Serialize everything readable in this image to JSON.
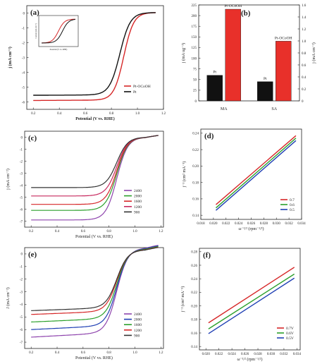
{
  "chart_data": [
    {
      "id": "a",
      "panel_label": "(a)",
      "type": "line",
      "xlabel": "Potential (V vs. RHE)",
      "ylabel": "j (mA cm⁻²)",
      "xlim": [
        0.15,
        1.2
      ],
      "ylim": [
        -6.5,
        0.5
      ],
      "xticks": [
        0.2,
        0.4,
        0.6,
        0.8,
        1.0,
        1.2
      ],
      "xtick_labels": [
        "0.2",
        "0.4",
        "0.6",
        "0.8",
        "1.0",
        "1.2"
      ],
      "yticks": [
        -6,
        -5,
        -4,
        -3,
        -2,
        -1,
        0
      ],
      "ytick_labels": [
        "-6",
        "-5",
        "-4",
        "-3",
        "-2",
        "-1",
        "0"
      ],
      "series": [
        {
          "name": "Pt-OCoOH",
          "color": "#d62728",
          "limit": -5.9,
          "e_half": 0.895,
          "width": 0.038
        },
        {
          "name": "Pt",
          "color": "#111111",
          "limit": -5.55,
          "e_half": 0.865,
          "width": 0.04
        }
      ],
      "inset": {
        "xlabel": "Potential (V vs. RHE)",
        "ylabel": "Current (mA cm⁻²)"
      }
    },
    {
      "id": "b",
      "panel_label": "(b)",
      "type": "bar",
      "ylabel": "j (mA ug⁻¹)",
      "y2label": "j (mA cm⁻²)",
      "ylim": [
        0,
        225
      ],
      "y2lim": [
        0,
        1.6
      ],
      "yticks": [
        0,
        25,
        50,
        75,
        100,
        125,
        150,
        175,
        200,
        225
      ],
      "ytick_labels": [
        "0",
        "25",
        "50",
        "75",
        "100",
        "125",
        "150",
        "175",
        "200",
        "225"
      ],
      "y2ticks": [
        0,
        0.2,
        0.4,
        0.6,
        0.8,
        1.0,
        1.2,
        1.4,
        1.6
      ],
      "y2tick_labels": [
        "0",
        "0.2",
        "0.4",
        "0.6",
        "0.8",
        "1.0",
        "1.2",
        "1.4",
        "1.6"
      ],
      "categories": [
        "MA",
        "SA"
      ],
      "series": [
        {
          "name": "Pt",
          "color": "#111111",
          "values": [
            60,
            45
          ]
        },
        {
          "name": "Pt-OCoOH",
          "color": "#e8302a",
          "values": [
            215,
            140
          ]
        }
      ]
    },
    {
      "id": "c",
      "panel_label": "(c)",
      "type": "line",
      "xlabel": "Potential (V vs. RHE)",
      "ylabel": "j (mA cm⁻²)",
      "xlim": [
        0.15,
        1.22
      ],
      "ylim": [
        -7.5,
        0.5
      ],
      "xticks": [
        0.2,
        0.4,
        0.6,
        0.8,
        1.0,
        1.2
      ],
      "xtick_labels": [
        "0.2",
        "0.4",
        "0.6",
        "0.8",
        "1.0",
        "1.2"
      ],
      "yticks": [
        -7,
        -6,
        -5,
        -4,
        -3,
        -2,
        -1,
        0
      ],
      "ytick_labels": [
        "-7",
        "-6",
        "-5",
        "-4",
        "-3",
        "-2",
        "-1",
        "0"
      ],
      "series": [
        {
          "name": "2400",
          "color": "#8e44ad",
          "limit": -6.9
        },
        {
          "name": "2000",
          "color": "#2ca02c",
          "limit": -6.1
        },
        {
          "name": "1600",
          "color": "#d62728",
          "limit": -5.6
        },
        {
          "name": "1200",
          "color": "#c7285e",
          "limit": -4.9
        },
        {
          "name": "900",
          "color": "#333333",
          "limit": -4.2
        }
      ]
    },
    {
      "id": "d",
      "panel_label": "(d)",
      "type": "line",
      "xlabel": "ω⁻¹/² (rpm⁻¹/²)",
      "ylabel": "j⁻¹ (cm² mA⁻¹)",
      "xlim": [
        0.018,
        0.034
      ],
      "ylim": [
        0.135,
        0.245
      ],
      "xticks": [
        0.018,
        0.02,
        0.022,
        0.024,
        0.026,
        0.028,
        0.03,
        0.032,
        0.034
      ],
      "xtick_labels": [
        "0.018",
        "0.020",
        "0.022",
        "0.024",
        "0.026",
        "0.028",
        "0.030",
        "0.032",
        "0.034"
      ],
      "yticks": [
        0.14,
        0.16,
        0.18,
        0.2,
        0.22,
        0.24
      ],
      "ytick_labels": [
        "0.14",
        "0.16",
        "0.18",
        "0.20",
        "0.22",
        "0.24"
      ],
      "series": [
        {
          "name": "0.7",
          "color": "#d62728",
          "x": [
            0.0204,
            0.0331
          ],
          "y": [
            0.153,
            0.237
          ]
        },
        {
          "name": "0.6",
          "color": "#2ca02c",
          "x": [
            0.0204,
            0.0331
          ],
          "y": [
            0.149,
            0.234
          ]
        },
        {
          "name": "0.5",
          "color": "#1f3fb4",
          "x": [
            0.0204,
            0.0331
          ],
          "y": [
            0.146,
            0.231
          ]
        }
      ]
    },
    {
      "id": "e",
      "panel_label": "(e)",
      "type": "line",
      "xlabel": "Potential (V vs. RHE)",
      "ylabel": "J (mA cm⁻²)",
      "xlim": [
        0.15,
        1.22
      ],
      "ylim": [
        -7.5,
        0.5
      ],
      "xticks": [
        0.2,
        0.4,
        0.6,
        0.8,
        1.0,
        1.2
      ],
      "xtick_labels": [
        "0.2",
        "0.4",
        "0.6",
        "0.8",
        "1.0",
        "1.2"
      ],
      "yticks": [
        -7,
        -6,
        -5,
        -4,
        -3,
        -2,
        -1,
        0
      ],
      "ytick_labels": [
        "-7",
        "-6",
        "-5",
        "-4",
        "-3",
        "-2",
        "-1",
        "0"
      ],
      "series": [
        {
          "name": "2400",
          "color": "#8e44ad",
          "limit": -6.6
        },
        {
          "name": "2000",
          "color": "#1f3fb4",
          "limit": -6.0
        },
        {
          "name": "1600",
          "color": "#2ca02c",
          "limit": -5.4
        },
        {
          "name": "1200",
          "color": "#d62728",
          "limit": -4.8
        },
        {
          "name": "900",
          "color": "#333333",
          "limit": -4.5
        }
      ]
    },
    {
      "id": "f",
      "panel_label": "(f)",
      "type": "line",
      "xlabel": "ω⁻¹/² (rpm⁻¹/²)",
      "ylabel": "j⁻¹ (cm² mA⁻¹)",
      "xlim": [
        0.019,
        0.0345
      ],
      "ylim": [
        0.135,
        0.285
      ],
      "xticks": [
        0.02,
        0.022,
        0.024,
        0.026,
        0.028,
        0.03,
        0.032,
        0.034
      ],
      "xtick_labels": [
        "0.020",
        "0.022",
        "0.024",
        "0.026",
        "0.028",
        "0.030",
        "0.032",
        "0.034"
      ],
      "yticks": [
        0.14,
        0.16,
        0.18,
        0.2,
        0.22,
        0.24,
        0.26,
        0.28
      ],
      "ytick_labels": [
        "0.14",
        "0.16",
        "0.18",
        "0.20",
        "0.22",
        "0.24",
        "0.26",
        "0.28"
      ],
      "series": [
        {
          "name": "0.7V",
          "color": "#d62728",
          "x": [
            0.0204,
            0.0336
          ],
          "y": [
            0.175,
            0.257
          ]
        },
        {
          "name": "0.6V",
          "color": "#2ca02c",
          "x": [
            0.0204,
            0.0336
          ],
          "y": [
            0.166,
            0.247
          ]
        },
        {
          "name": "0.5V",
          "color": "#1f3fb4",
          "x": [
            0.0204,
            0.0336
          ],
          "y": [
            0.159,
            0.241
          ]
        }
      ]
    }
  ]
}
